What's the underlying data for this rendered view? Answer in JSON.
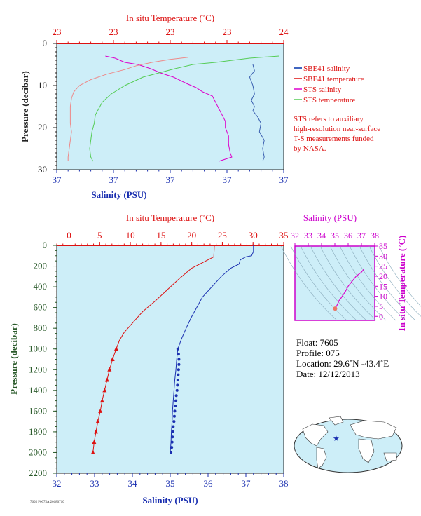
{
  "chart_data": [
    {
      "id": "upper",
      "type": "line",
      "title": "",
      "top_axis": {
        "label": "In situ Temperature (˚C)",
        "tick_labels": [
          "23",
          "23",
          "23",
          "23",
          "24"
        ],
        "range": [
          23.0,
          24.0
        ]
      },
      "x_axis": {
        "label": "Salinity (PSU)",
        "tick_labels": [
          "37",
          "37",
          "37",
          "37",
          "37"
        ],
        "range": [
          36.7,
          37.4
        ]
      },
      "y_axis": {
        "label": "Pressure (decibar)",
        "ticks": [
          0,
          10,
          20,
          30
        ],
        "range": [
          0,
          30
        ],
        "reversed": true
      },
      "legend": {
        "position": "right",
        "items": [
          {
            "name": "SBE41 salinity",
            "color": "#0033aa",
            "style": "line"
          },
          {
            "name": "SBE41 temperature",
            "color": "#dd1111",
            "style": "line"
          },
          {
            "name": "STS salinity",
            "color": "#dd00cc",
            "style": "line"
          },
          {
            "name": "STS temperature",
            "color": "#55cc55",
            "style": "line"
          }
        ],
        "note": [
          "STS refers to auxiliary",
          "high-resolution near-surface",
          "T-S measurements funded",
          "by NASA."
        ]
      },
      "series": [
        {
          "name": "SBE41 salinity",
          "axis": "salinity",
          "color": "#3a5fb0",
          "points": [
            [
              37.305,
              5
            ],
            [
              37.31,
              6.5
            ],
            [
              37.295,
              8
            ],
            [
              37.305,
              10
            ],
            [
              37.31,
              12
            ],
            [
              37.3,
              13.5
            ],
            [
              37.31,
              15
            ],
            [
              37.305,
              16
            ],
            [
              37.32,
              17.5
            ],
            [
              37.33,
              19
            ],
            [
              37.325,
              21
            ],
            [
              37.34,
              23
            ],
            [
              37.335,
              25
            ],
            [
              37.34,
              27
            ],
            [
              37.335,
              28
            ]
          ]
        },
        {
          "name": "STS salinity",
          "axis": "salinity",
          "color": "#dd00cc",
          "points": [
            [
              36.85,
              3
            ],
            [
              36.88,
              3.5
            ],
            [
              36.91,
              4.5
            ],
            [
              36.95,
              5
            ],
            [
              36.99,
              6
            ],
            [
              37.02,
              7
            ],
            [
              37.06,
              8
            ],
            [
              37.1,
              9.5
            ],
            [
              37.13,
              10.5
            ],
            [
              37.15,
              11.5
            ],
            [
              37.18,
              12.5
            ],
            [
              37.19,
              14
            ],
            [
              37.2,
              15.5
            ],
            [
              37.21,
              17
            ],
            [
              37.22,
              18.5
            ],
            [
              37.22,
              20
            ],
            [
              37.23,
              22
            ],
            [
              37.23,
              24
            ],
            [
              37.235,
              26
            ],
            [
              37.24,
              27
            ],
            [
              37.2,
              28
            ]
          ]
        },
        {
          "name": "STS temperature",
          "axis": "temperature",
          "color": "#55cc55",
          "points": [
            [
              23.98,
              3
            ],
            [
              23.85,
              3.5
            ],
            [
              23.7,
              4.5
            ],
            [
              23.6,
              5
            ],
            [
              23.52,
              6
            ],
            [
              23.45,
              7
            ],
            [
              23.38,
              8
            ],
            [
              23.34,
              9
            ],
            [
              23.3,
              10
            ],
            [
              23.27,
              11
            ],
            [
              23.24,
              12
            ],
            [
              23.22,
              13
            ],
            [
              23.2,
              14
            ],
            [
              23.19,
              15
            ],
            [
              23.18,
              16
            ],
            [
              23.17,
              17
            ],
            [
              23.165,
              19
            ],
            [
              23.155,
              21
            ],
            [
              23.15,
              23
            ],
            [
              23.145,
              25
            ],
            [
              23.15,
              27
            ],
            [
              23.16,
              28
            ]
          ]
        },
        {
          "name": "SBE41 temperature",
          "axis": "temperature",
          "color": "#ee8888",
          "points": [
            [
              23.58,
              3.3
            ],
            [
              23.5,
              3.8
            ],
            [
              23.42,
              4.5
            ],
            [
              23.35,
              5.3
            ],
            [
              23.3,
              6.2
            ],
            [
              23.22,
              7.3
            ],
            [
              23.15,
              8.6
            ],
            [
              23.1,
              10
            ],
            [
              23.075,
              11.5
            ],
            [
              23.065,
              13
            ],
            [
              23.06,
              15
            ],
            [
              23.06,
              17
            ],
            [
              23.06,
              19
            ],
            [
              23.065,
              21
            ],
            [
              23.06,
              23
            ],
            [
              23.055,
              25
            ],
            [
              23.05,
              27
            ],
            [
              23.05,
              28
            ]
          ]
        }
      ]
    },
    {
      "id": "lower",
      "type": "line",
      "title": "",
      "top_axis": {
        "label": "In situ Temperature (˚C)",
        "ticks": [
          0,
          5,
          10,
          15,
          20,
          25,
          30,
          35
        ],
        "range": [
          -2,
          35
        ]
      },
      "x_axis": {
        "label": "Salinity (PSU)",
        "ticks": [
          32,
          33,
          34,
          35,
          36,
          37,
          38
        ],
        "range": [
          32,
          38
        ]
      },
      "y_axis": {
        "label": "Pressure (decibar)",
        "ticks": [
          0,
          200,
          400,
          600,
          800,
          1000,
          1200,
          1400,
          1600,
          1800,
          2000,
          2200
        ],
        "range": [
          0,
          2200
        ],
        "reversed": true
      },
      "series": [
        {
          "name": "Salinity",
          "axis": "salinity",
          "color": "#1a2fb0",
          "points": [
            [
              37.2,
              0
            ],
            [
              37.2,
              60
            ],
            [
              37.15,
              100
            ],
            [
              37.0,
              110
            ],
            [
              36.85,
              140
            ],
            [
              36.82,
              180
            ],
            [
              36.6,
              220
            ],
            [
              36.35,
              300
            ],
            [
              36.1,
              400
            ],
            [
              35.85,
              500
            ],
            [
              35.7,
              600
            ],
            [
              35.55,
              700
            ],
            [
              35.42,
              800
            ],
            [
              35.3,
              900
            ],
            [
              35.2,
              1000
            ],
            [
              35.17,
              1100
            ],
            [
              35.15,
              1200
            ],
            [
              35.12,
              1300
            ],
            [
              35.1,
              1400
            ],
            [
              35.08,
              1500
            ],
            [
              35.06,
              1600
            ],
            [
              35.05,
              1700
            ],
            [
              35.03,
              1800
            ],
            [
              35.02,
              1900
            ],
            [
              35.0,
              2000
            ]
          ]
        },
        {
          "name": "In situ Temperature",
          "axis": "temperature",
          "color": "#dd1111",
          "points": [
            [
              23.7,
              0
            ],
            [
              23.6,
              110
            ],
            [
              22.0,
              160
            ],
            [
              20.0,
              220
            ],
            [
              18.0,
              320
            ],
            [
              16.0,
              430
            ],
            [
              14.0,
              540
            ],
            [
              12.0,
              640
            ],
            [
              10.2,
              760
            ],
            [
              9.0,
              840
            ],
            [
              8.2,
              920
            ],
            [
              7.7,
              1000
            ],
            [
              7.1,
              1100
            ],
            [
              6.6,
              1200
            ],
            [
              6.2,
              1300
            ],
            [
              5.8,
              1400
            ],
            [
              5.4,
              1500
            ],
            [
              5.1,
              1600
            ],
            [
              4.7,
              1700
            ],
            [
              4.4,
              1800
            ],
            [
              4.1,
              1900
            ],
            [
              3.9,
              2000
            ]
          ]
        },
        {
          "name": "Salinity samples",
          "axis": "salinity",
          "color": "#1a2fb0",
          "marker": "circle",
          "points": [
            [
              35.2,
              1000
            ],
            [
              35.22,
              1050
            ],
            [
              35.23,
              1100
            ],
            [
              35.23,
              1150
            ],
            [
              35.22,
              1200
            ],
            [
              35.21,
              1250
            ],
            [
              35.2,
              1300
            ],
            [
              35.19,
              1350
            ],
            [
              35.18,
              1400
            ],
            [
              35.16,
              1450
            ],
            [
              35.15,
              1500
            ],
            [
              35.14,
              1550
            ],
            [
              35.12,
              1600
            ],
            [
              35.11,
              1650
            ],
            [
              35.1,
              1700
            ],
            [
              35.08,
              1750
            ],
            [
              35.07,
              1800
            ],
            [
              35.06,
              1850
            ],
            [
              35.05,
              1900
            ],
            [
              35.04,
              1950
            ],
            [
              35.02,
              2000
            ]
          ]
        },
        {
          "name": "Temperature samples",
          "axis": "temperature",
          "color": "#dd1111",
          "marker": "triangle",
          "points": [
            [
              7.7,
              1000
            ],
            [
              7.1,
              1100
            ],
            [
              6.6,
              1200
            ],
            [
              6.2,
              1300
            ],
            [
              5.8,
              1400
            ],
            [
              5.4,
              1500
            ],
            [
              5.1,
              1600
            ],
            [
              4.7,
              1700
            ],
            [
              4.4,
              1800
            ],
            [
              4.1,
              1900
            ],
            [
              3.9,
              2000
            ]
          ]
        }
      ]
    },
    {
      "id": "ts",
      "type": "scatter",
      "title": "",
      "top_axis": {
        "label": "Salinity (PSU)",
        "ticks": [
          32,
          33,
          34,
          35,
          36,
          37,
          38
        ],
        "range": [
          32,
          38
        ]
      },
      "y_axis": {
        "label": "In situ Temperature (˚C)",
        "ticks": [
          0,
          5,
          10,
          15,
          20,
          25,
          30,
          35
        ],
        "range": [
          -2,
          35
        ]
      },
      "series": [
        {
          "name": "T-S profile",
          "color": "#dd00cc",
          "points": [
            [
              37.2,
              23.7
            ],
            [
              37.0,
              22.0
            ],
            [
              36.6,
              20.0
            ],
            [
              36.3,
              17.5
            ],
            [
              36.0,
              15.0
            ],
            [
              35.8,
              12.5
            ],
            [
              35.6,
              10.5
            ],
            [
              35.45,
              9.0
            ],
            [
              35.3,
              7.7
            ],
            [
              35.2,
              6.0
            ],
            [
              35.1,
              4.8
            ],
            [
              35.02,
              3.9
            ]
          ]
        }
      ]
    }
  ],
  "float_info": {
    "float": "Float:  7605",
    "profile": "Profile:  075",
    "location": "Location:  29.6˚N  -43.4˚E",
    "date": "Date:  12/12/2013"
  },
  "map": {
    "marker": "star",
    "marker_color": "#1a2fb0",
    "lat": 29.6,
    "lon": -43.4
  },
  "footer": {
    "caption": "7605 P0075A 20180710"
  },
  "colors": {
    "plot_bg": "#cdeef8",
    "temperature_axis": "#dd1111",
    "salinity_axis": "#1a2fb0",
    "ts_axis": "#cc00cc",
    "pressure_axis": "#2a5a2a"
  }
}
